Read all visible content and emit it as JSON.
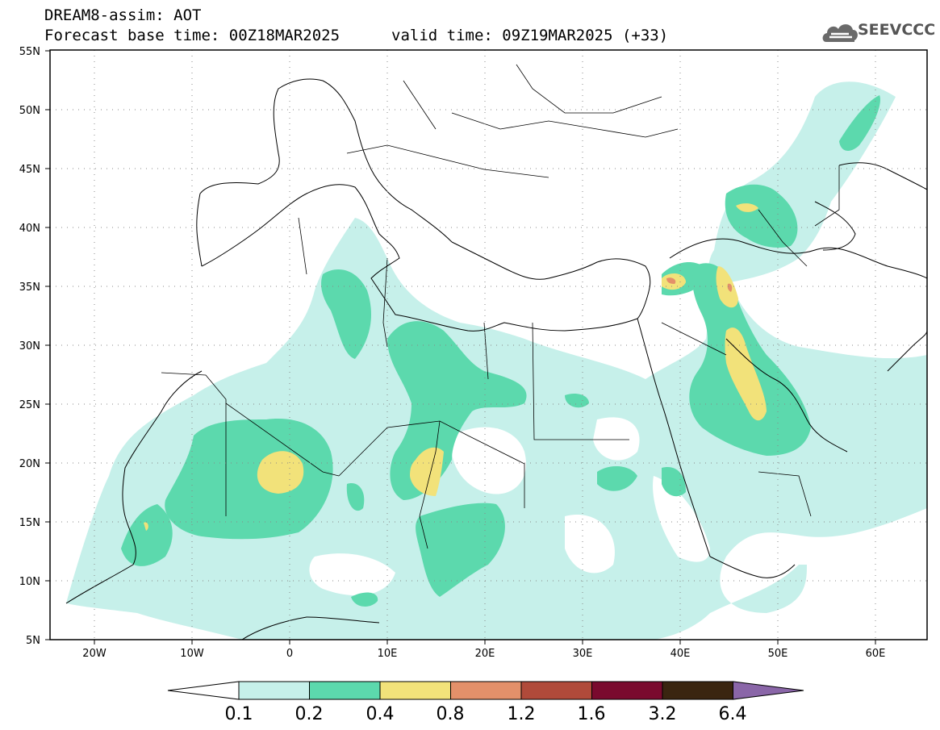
{
  "header": {
    "title_line1": "DREAM8-assim: AOT",
    "title_line2": "Forecast base time: 00Z18MAR2025",
    "valid_time": "valid time: 09Z19MAR2025 (+33)"
  },
  "logo": {
    "text": "SEEVCCC",
    "icon": "cloud-logo-icon"
  },
  "map": {
    "variable": "AOT",
    "region": "North Africa and Middle East",
    "lon_range": [
      -25,
      65
    ],
    "lat_range": [
      5,
      55
    ],
    "lat_labels": [
      "55N",
      "50N",
      "45N",
      "40N",
      "35N",
      "30N",
      "25N",
      "20N",
      "15N",
      "10N",
      "5N"
    ],
    "lon_labels": [
      "20W",
      "10W",
      "0",
      "10E",
      "20E",
      "30E",
      "40E",
      "50E",
      "60E"
    ],
    "grid": "dotted"
  },
  "colorbar": {
    "labels": [
      "0.1",
      "0.2",
      "0.4",
      "0.8",
      "1.2",
      "1.6",
      "3.2",
      "6.4"
    ],
    "colors": [
      "#ffffff",
      "#c6f0ea",
      "#5cd9ad",
      "#f2e27a",
      "#e3906a",
      "#b04a3a",
      "#7a0a2e",
      "#3a2510",
      "#8a66a8"
    ]
  },
  "colors": {
    "aot_01": "#c6f0ea",
    "aot_02": "#5cd9ad",
    "aot_04": "#f2e27a",
    "aot_08": "#e3906a",
    "aot_12": "#b04a3a"
  }
}
